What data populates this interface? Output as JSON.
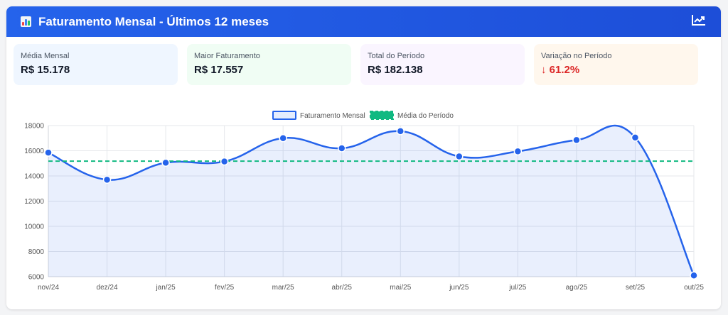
{
  "header": {
    "title": "Faturamento Mensal - Últimos 12 meses",
    "icon_left": "bar-chart-icon",
    "icon_right": "trending-up-icon"
  },
  "stats": [
    {
      "label": "Média Mensal",
      "value": "R$ 15.178",
      "bg": "#eff6ff"
    },
    {
      "label": "Maior Faturamento",
      "value": "R$ 17.557",
      "bg": "#f0fdf4"
    },
    {
      "label": "Total do Período",
      "value": "R$ 182.138",
      "bg": "#faf5ff"
    },
    {
      "label": "Variação no Período",
      "value": "↓ 61.2%",
      "bg": "#fff7ed",
      "color": "#dc2626"
    }
  ],
  "chart_data": {
    "type": "line",
    "categories": [
      "nov/24",
      "dez/24",
      "jan/25",
      "fev/25",
      "mar/25",
      "abr/25",
      "mai/25",
      "jun/25",
      "jul/25",
      "ago/25",
      "set/25",
      "out/25"
    ],
    "series": [
      {
        "name": "Faturamento Mensal",
        "values": [
          15850,
          13700,
          15050,
          15150,
          17000,
          16200,
          17557,
          15550,
          15950,
          16850,
          17050,
          6100
        ],
        "color": "#2563eb",
        "fill": "rgba(37,99,235,0.10)"
      },
      {
        "name": "Média do Período",
        "values": [
          15178,
          15178,
          15178,
          15178,
          15178,
          15178,
          15178,
          15178,
          15178,
          15178,
          15178,
          15178
        ],
        "color": "#10b981",
        "dashed": true
      }
    ],
    "yticks": [
      6000,
      8000,
      10000,
      12000,
      14000,
      16000,
      18000
    ],
    "ylim": [
      6000,
      18000
    ],
    "grid": true,
    "legend": "top-center"
  }
}
